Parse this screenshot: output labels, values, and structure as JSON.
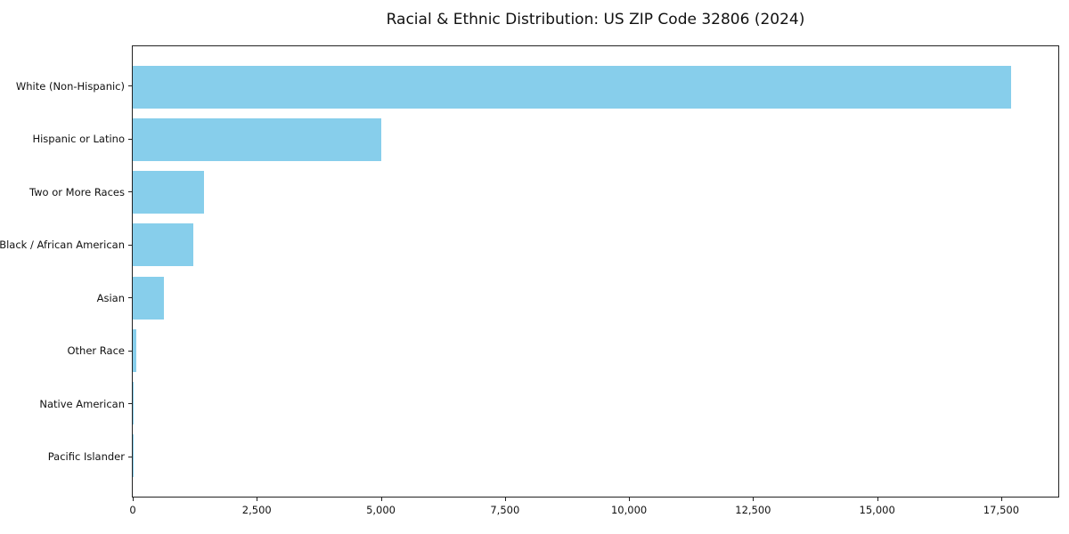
{
  "chart_data": {
    "type": "bar",
    "orientation": "horizontal",
    "title": "Racial & Ethnic Distribution: US ZIP Code 32806 (2024)",
    "categories": [
      "White (Non-Hispanic)",
      "Hispanic or Latino",
      "Two or More Races",
      "Black / African American",
      "Asian",
      "Other Race",
      "Native American",
      "Pacific Islander"
    ],
    "values": [
      17700,
      5000,
      1440,
      1220,
      625,
      70,
      20,
      10
    ],
    "xlabel": "",
    "ylabel": "",
    "xlim": [
      0,
      18650
    ],
    "x_ticks": [
      0,
      2500,
      5000,
      7500,
      10000,
      12500,
      15000,
      17500
    ],
    "x_tick_labels": [
      "0",
      "2,500",
      "5,000",
      "7,500",
      "10,000",
      "12,500",
      "15,000",
      "17,500"
    ],
    "bar_color": "#87CEEB",
    "axis_color": "#222222",
    "text_color": "#111111",
    "background": "#ffffff",
    "grid": false,
    "legend_position": "none"
  }
}
